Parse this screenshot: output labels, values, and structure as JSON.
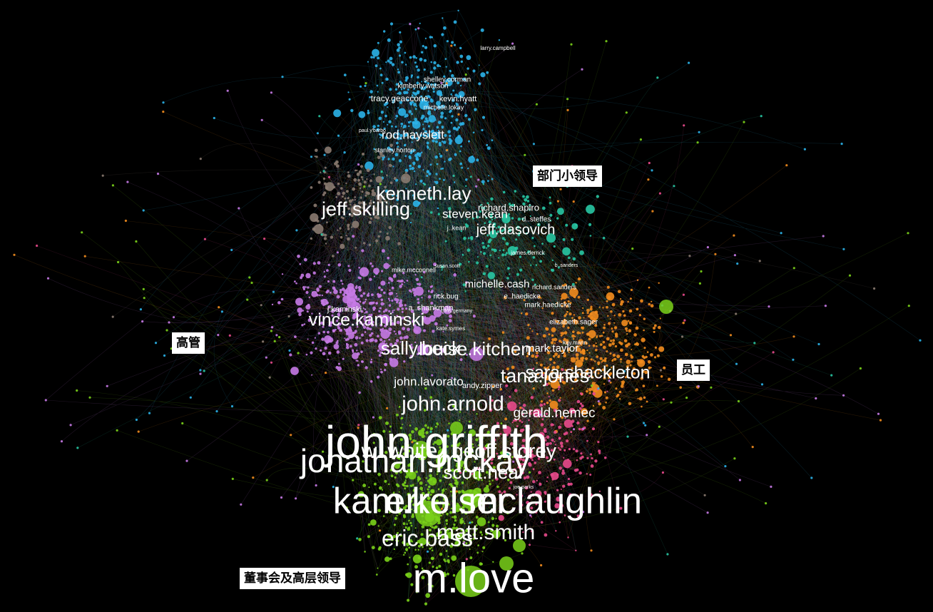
{
  "callouts": {
    "dept_leaders": "部门小领导",
    "executives": "高管",
    "staff": "员工",
    "board": "董事会及高层领导"
  },
  "colors": {
    "background": "#000000",
    "cyan": "#2bb3e8",
    "purple": "#c77ae6",
    "orange": "#f28c1e",
    "green": "#7ad11a",
    "pink": "#e84a8c",
    "teal": "#28c6a3",
    "gray": "#8a7a70"
  },
  "node_labels": [
    "larry.campbell",
    "shelley.corman",
    "kimberly.watson",
    "tracy.geaccone",
    "kevin.hyatt",
    "michelle.lokay",
    "paul.y'barbo",
    "rod.hayslett",
    "stanley.horton",
    "kenneth.lay",
    "jeff.skilling",
    "richard.shapiro",
    "steven.kean",
    "d..steffes",
    "j..kean",
    "jeff.dasovich",
    "james.derrick",
    "susan.scott",
    "mike.mcconnell",
    "b..sanders",
    "michelle.cash",
    "richard.sanders",
    "chris.germany",
    "rick.bug",
    "e..haedicke",
    "mark.haedicke",
    "j.kaminski",
    "a..shankman",
    "vince.kaminski",
    "elizabeth.sager",
    "kate.symes",
    "sally.beck",
    "louise.kitchen",
    "mark.taylor",
    "kay.mann",
    "tana.jones",
    "sara.shackleton",
    "john.lavorato",
    "andy.zipper",
    "john.arnold",
    "gerald.nemec",
    "john.griffith",
    "w..white",
    "jonathan.mckay",
    "geoff.storey",
    "scott.neal",
    "kam.keiser",
    "errol.mclaughlin",
    "matt.smith",
    "eric.bass",
    "m.love",
    "joe.parks"
  ]
}
